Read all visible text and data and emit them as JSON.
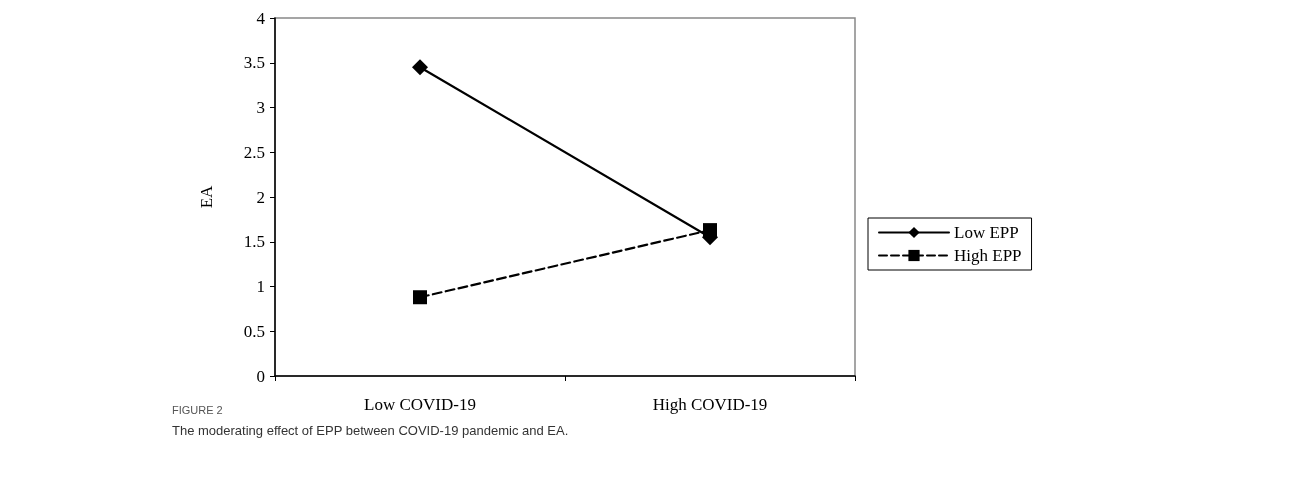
{
  "chart_data": {
    "type": "line",
    "ylabel": "EA",
    "categories": [
      "Low COVID-19",
      "High COVID-19"
    ],
    "series": [
      {
        "name": "Low EPP",
        "color": "#000000",
        "values": [
          3.45,
          1.55
        ],
        "marker": "diamond",
        "line_style": "solid"
      },
      {
        "name": "High EPP",
        "color": "#000000",
        "values": [
          0.88,
          1.63
        ],
        "marker": "square",
        "line_style": "dashed"
      }
    ],
    "ylim": [
      0,
      4
    ],
    "yticks": [
      0,
      0.5,
      1,
      1.5,
      2,
      2.5,
      3,
      3.5,
      4
    ],
    "grid": false,
    "legend": "right",
    "annotations": [
      "FIGURE 2",
      "The moderating effect of EPP between COVID-19 pandemic and EA."
    ]
  }
}
